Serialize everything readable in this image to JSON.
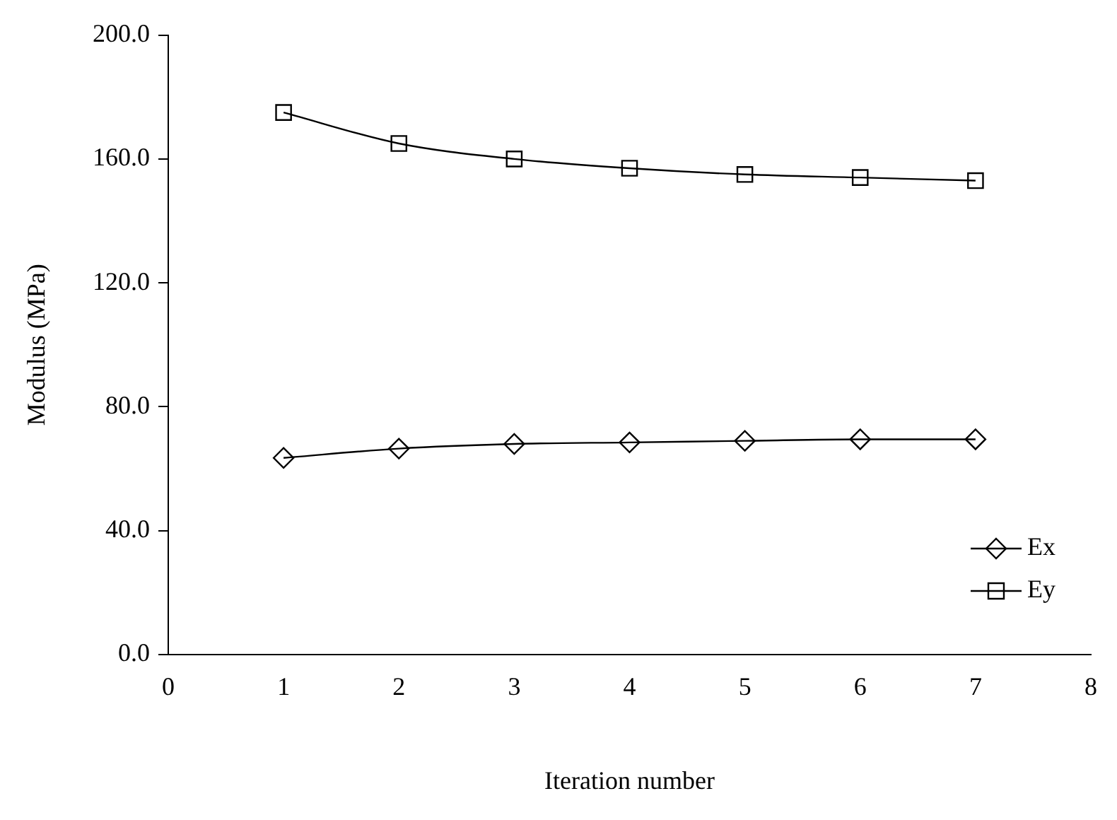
{
  "chart_data": {
    "type": "line",
    "xlabel": "Iteration number",
    "ylabel": "Modulus (MPa)",
    "x": [
      1,
      2,
      3,
      4,
      5,
      6,
      7
    ],
    "series": [
      {
        "name": "Ex",
        "color": "#000000",
        "marker": "diamond",
        "values": [
          63.5,
          66.5,
          68,
          68.5,
          69,
          69.5,
          69.5
        ]
      },
      {
        "name": "Ey",
        "color": "#000000",
        "marker": "square",
        "values": [
          175,
          165,
          160,
          157,
          155,
          154,
          153
        ]
      }
    ],
    "xlim": [
      0,
      8
    ],
    "xticks": [
      0,
      1,
      2,
      3,
      4,
      5,
      6,
      7,
      8
    ],
    "ylim": [
      0,
      200
    ],
    "yticks": [
      {
        "value": 0,
        "label": "0.0"
      },
      {
        "value": 40,
        "label": "40.0"
      },
      {
        "value": 80,
        "label": "80.0"
      },
      {
        "value": 120,
        "label": "120.0"
      },
      {
        "value": 160,
        "label": "160.0"
      },
      {
        "value": 200,
        "label": "200.0"
      }
    ],
    "grid": false,
    "legend": "bottom right",
    "line_style": "solid"
  }
}
